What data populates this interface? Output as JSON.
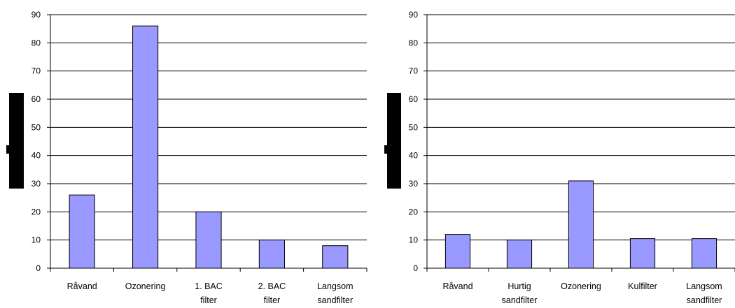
{
  "chart_data": [
    {
      "type": "bar",
      "title": "",
      "xlabel": "",
      "ylabel": "",
      "ylim": [
        0,
        90
      ],
      "yticks": [
        "0",
        "10",
        "20",
        "30",
        "40",
        "50",
        "60",
        "70",
        "80",
        "90"
      ],
      "grid": true,
      "categories": [
        [
          "Råvand"
        ],
        [
          "Ozonering"
        ],
        [
          "1. BAC",
          "filter"
        ],
        [
          "2. BAC",
          "filter"
        ],
        [
          "Langsom",
          "sandfilter"
        ]
      ],
      "values": [
        26,
        86,
        20,
        10,
        8
      ],
      "bar_color": "#9999ff"
    },
    {
      "type": "bar",
      "title": "",
      "xlabel": "",
      "ylabel": "",
      "ylim": [
        0,
        90
      ],
      "yticks": [
        "0",
        "10",
        "20",
        "30",
        "40",
        "50",
        "60",
        "70",
        "80",
        "90"
      ],
      "grid": true,
      "categories": [
        [
          "Råvand"
        ],
        [
          "Hurtig",
          "sandfilter"
        ],
        [
          "Ozonering"
        ],
        [
          "Kulfilter"
        ],
        [
          "Langsom",
          "sandfilter"
        ]
      ],
      "values": [
        12,
        10,
        31,
        10.5,
        10.5
      ],
      "bar_color": "#9999ff"
    }
  ]
}
